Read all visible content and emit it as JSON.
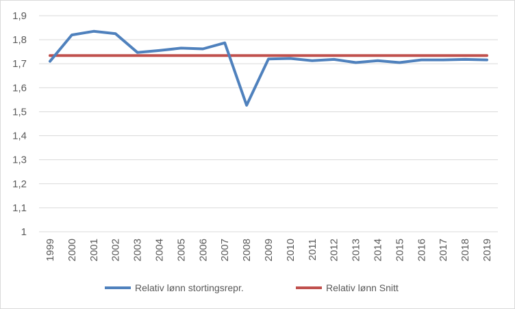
{
  "chart_data": {
    "type": "line",
    "title": "",
    "xlabel": "",
    "ylabel": "",
    "categories": [
      "1999",
      "2000",
      "2001",
      "2002",
      "2003",
      "2004",
      "2005",
      "2006",
      "2007",
      "2008",
      "2009",
      "2010",
      "2011",
      "2012",
      "2013",
      "2014",
      "2015",
      "2016",
      "2017",
      "2018",
      "2019"
    ],
    "y_ticks": [
      "1",
      "1,1",
      "1,2",
      "1,3",
      "1,4",
      "1,5",
      "1,6",
      "1,7",
      "1,8",
      "1,9"
    ],
    "ylim": [
      1,
      1.9
    ],
    "grid": true,
    "legend_position": "bottom",
    "series": [
      {
        "name": "Relativ lønn stortingsrepr.",
        "color": "#4f81bd",
        "values": [
          1.71,
          1.82,
          1.835,
          1.825,
          1.747,
          1.755,
          1.765,
          1.762,
          1.787,
          1.527,
          1.72,
          1.722,
          1.713,
          1.718,
          1.705,
          1.713,
          1.705,
          1.716,
          1.716,
          1.718,
          1.716
        ]
      },
      {
        "name": "Relativ lønn Snitt",
        "color": "#c0504d",
        "values": [
          1.734,
          1.734,
          1.734,
          1.734,
          1.734,
          1.734,
          1.734,
          1.734,
          1.734,
          1.734,
          1.734,
          1.734,
          1.734,
          1.734,
          1.734,
          1.734,
          1.734,
          1.734,
          1.734,
          1.734,
          1.734
        ]
      }
    ]
  }
}
